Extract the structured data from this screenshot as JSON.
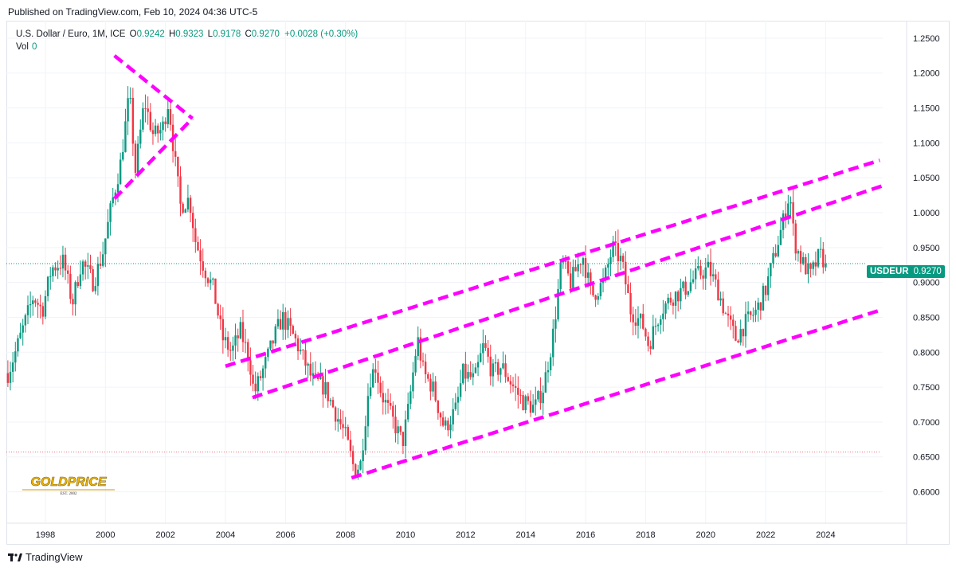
{
  "header": {
    "published": "Published on TradingView.com, Feb 10, 2024 04:36 UTC-5"
  },
  "legend": {
    "symbol": "U.S. Dollar / Euro, 1M, ICE",
    "o_label": "O",
    "o": "0.9242",
    "h_label": "H",
    "h": "0.9323",
    "l_label": "L",
    "l": "0.9178",
    "c_label": "C",
    "c": "0.9270",
    "change": "+0.0028 (+0.30%)",
    "vol_label": "Vol",
    "vol": "0"
  },
  "price_tag": {
    "ticker": "USDEUR",
    "value": "0.9270"
  },
  "footer": {
    "brand": "TradingView"
  },
  "logo": {
    "text": "GOLDPRICE",
    "sub": "EST. 2002"
  },
  "colors": {
    "up": "#089981",
    "down": "#f23645",
    "trendline": "#ff00ff",
    "grid": "#f0f3fa"
  },
  "chart_data": {
    "type": "candlestick",
    "interval": "1M",
    "x_range": [
      1996.7,
      2025.9
    ],
    "ylim": [
      0.555,
      1.275
    ],
    "y_ticks": [
      "1.2500",
      "1.2000",
      "1.1500",
      "1.1000",
      "1.0500",
      "1.0000",
      "0.9500",
      "0.9000",
      "0.8500",
      "0.8000",
      "0.7500",
      "0.7000",
      "0.6500",
      "0.6000"
    ],
    "x_ticks": [
      "1998",
      "2000",
      "2002",
      "2004",
      "2006",
      "2008",
      "2010",
      "2012",
      "2014",
      "2016",
      "2018",
      "2020",
      "2022",
      "2024"
    ],
    "x_tick_values": [
      1998,
      2000,
      2002,
      2004,
      2006,
      2008,
      2010,
      2012,
      2014,
      2016,
      2018,
      2020,
      2022,
      2024
    ],
    "last_price": 0.927,
    "reference_low_line": 0.657,
    "anchors": [
      [
        1996.75,
        0.77
      ],
      [
        1997.0,
        0.8
      ],
      [
        1997.3,
        0.84
      ],
      [
        1997.6,
        0.88
      ],
      [
        1997.9,
        0.86
      ],
      [
        1998.2,
        0.92
      ],
      [
        1998.6,
        0.93
      ],
      [
        1998.9,
        0.87
      ],
      [
        1999.2,
        0.93
      ],
      [
        1999.6,
        0.9
      ],
      [
        1999.9,
        0.94
      ],
      [
        2000.2,
        1.01
      ],
      [
        2000.5,
        1.07
      ],
      [
        2000.8,
        1.17
      ],
      [
        2001.0,
        1.06
      ],
      [
        2001.3,
        1.16
      ],
      [
        2001.6,
        1.11
      ],
      [
        2001.9,
        1.12
      ],
      [
        2002.1,
        1.16
      ],
      [
        2002.3,
        1.08
      ],
      [
        2002.5,
        1.01
      ],
      [
        2002.8,
        1.02
      ],
      [
        2003.0,
        0.96
      ],
      [
        2003.3,
        0.92
      ],
      [
        2003.6,
        0.89
      ],
      [
        2003.9,
        0.82
      ],
      [
        2004.2,
        0.8
      ],
      [
        2004.5,
        0.83
      ],
      [
        2004.8,
        0.79
      ],
      [
        2004.95,
        0.74
      ],
      [
        2005.3,
        0.78
      ],
      [
        2005.7,
        0.83
      ],
      [
        2005.9,
        0.85
      ],
      [
        2006.3,
        0.82
      ],
      [
        2006.6,
        0.79
      ],
      [
        2006.9,
        0.76
      ],
      [
        2007.3,
        0.75
      ],
      [
        2007.7,
        0.71
      ],
      [
        2008.0,
        0.68
      ],
      [
        2008.3,
        0.63
      ],
      [
        2008.5,
        0.64
      ],
      [
        2008.8,
        0.76
      ],
      [
        2009.0,
        0.78
      ],
      [
        2009.2,
        0.74
      ],
      [
        2009.6,
        0.7
      ],
      [
        2009.9,
        0.67
      ],
      [
        2010.1,
        0.72
      ],
      [
        2010.4,
        0.82
      ],
      [
        2010.6,
        0.77
      ],
      [
        2010.9,
        0.75
      ],
      [
        2011.3,
        0.69
      ],
      [
        2011.7,
        0.72
      ],
      [
        2011.9,
        0.77
      ],
      [
        2012.3,
        0.76
      ],
      [
        2012.6,
        0.81
      ],
      [
        2012.9,
        0.77
      ],
      [
        2013.2,
        0.78
      ],
      [
        2013.6,
        0.75
      ],
      [
        2013.9,
        0.73
      ],
      [
        2014.3,
        0.72
      ],
      [
        2014.6,
        0.75
      ],
      [
        2014.9,
        0.82
      ],
      [
        2015.2,
        0.93
      ],
      [
        2015.5,
        0.9
      ],
      [
        2015.9,
        0.94
      ],
      [
        2016.2,
        0.88
      ],
      [
        2016.6,
        0.9
      ],
      [
        2016.9,
        0.95
      ],
      [
        2017.2,
        0.93
      ],
      [
        2017.5,
        0.86
      ],
      [
        2017.9,
        0.84
      ],
      [
        2018.1,
        0.81
      ],
      [
        2018.5,
        0.86
      ],
      [
        2018.9,
        0.88
      ],
      [
        2019.3,
        0.89
      ],
      [
        2019.7,
        0.91
      ],
      [
        2020.1,
        0.92
      ],
      [
        2020.4,
        0.89
      ],
      [
        2020.7,
        0.85
      ],
      [
        2021.0,
        0.82
      ],
      [
        2021.3,
        0.84
      ],
      [
        2021.7,
        0.86
      ],
      [
        2022.0,
        0.89
      ],
      [
        2022.3,
        0.94
      ],
      [
        2022.6,
        0.99
      ],
      [
        2022.8,
        1.03
      ],
      [
        2022.95,
        0.96
      ],
      [
        2023.2,
        0.93
      ],
      [
        2023.5,
        0.91
      ],
      [
        2023.8,
        0.94
      ],
      [
        2024.0,
        0.927
      ]
    ],
    "trendlines": [
      {
        "name": "upper-channel",
        "points": [
          [
            2004.0,
            0.78
          ],
          [
            2025.8,
            1.075
          ]
        ]
      },
      {
        "name": "middle-channel",
        "points": [
          [
            2004.9,
            0.735
          ],
          [
            2026.0,
            1.04
          ]
        ]
      },
      {
        "name": "lower-channel",
        "points": [
          [
            2008.2,
            0.62
          ],
          [
            2025.8,
            0.86
          ]
        ]
      },
      {
        "name": "triangle-upper",
        "points": [
          [
            2000.3,
            1.225
          ],
          [
            2002.9,
            1.135
          ]
        ]
      },
      {
        "name": "triangle-lower",
        "points": [
          [
            2000.3,
            1.02
          ],
          [
            2002.9,
            1.135
          ]
        ]
      }
    ]
  }
}
